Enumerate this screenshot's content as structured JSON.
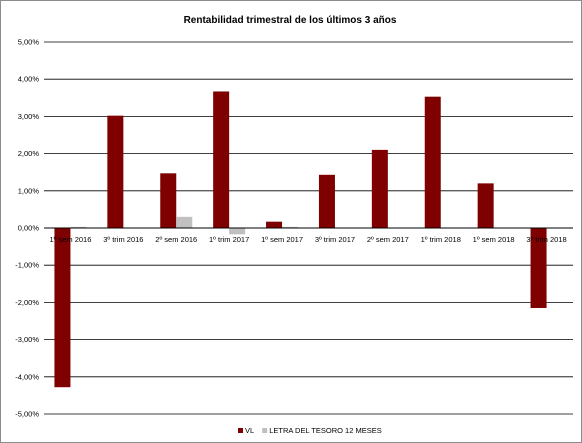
{
  "chart_data": {
    "type": "bar",
    "title": "Rentabilidad trimestral de los últimos 3 años",
    "categories": [
      "1º sem 2016",
      "3º trim 2016",
      "2º sem 2016",
      "1º trim 2017",
      "1º sem 2017",
      "3º trim 2017",
      "2º sem 2017",
      "1º trim 2018",
      "1º sem 2018",
      "3º trim 2018"
    ],
    "series": [
      {
        "name": "VL",
        "color": "#7f0000",
        "values": [
          -4.28,
          3.02,
          1.47,
          3.67,
          0.17,
          1.43,
          2.1,
          3.53,
          1.2,
          -2.15
        ]
      },
      {
        "name": "LETRA DEL TESORO 12 MESES",
        "color": "#c0c0c0",
        "values": [
          0.03,
          0.01,
          0.3,
          -0.17,
          0.03,
          0.0,
          0.0,
          0.0,
          0.0,
          0.0
        ]
      }
    ],
    "ylim": [
      -5,
      5
    ],
    "yticks": [
      "5,00%",
      "4,00%",
      "3,00%",
      "2,00%",
      "1,00%",
      "0,00%",
      "-1,00%",
      "-2,00%",
      "-3,00%",
      "-4,00%",
      "-5,00%"
    ],
    "grid": true,
    "legend_position": "bottom"
  }
}
